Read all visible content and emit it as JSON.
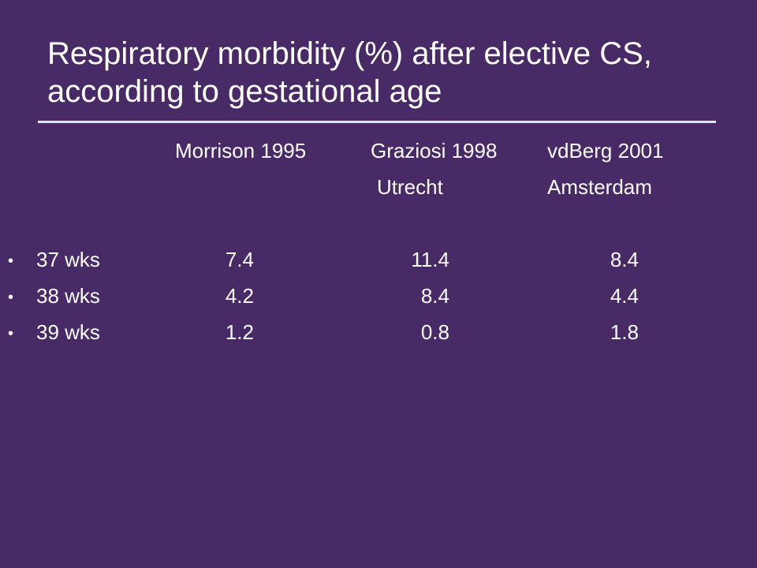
{
  "slide": {
    "title": "Respiratory morbidity (%) after elective CS, according to gestational age"
  },
  "table": {
    "columns": [
      {
        "name": "Morrison 1995",
        "sub": ""
      },
      {
        "name": "Graziosi 1998",
        "sub": "Utrecht"
      },
      {
        "name": "vdBerg 2001",
        "sub": "Amsterdam"
      }
    ],
    "rows": [
      {
        "bullet": "•",
        "label": "37 wks",
        "values": [
          "7.4",
          "11.4",
          "8.4"
        ]
      },
      {
        "bullet": "•",
        "label": "38 wks",
        "values": [
          "4.2",
          "8.4",
          "4.4"
        ]
      },
      {
        "bullet": "•",
        "label": "39 wks",
        "values": [
          "1.2",
          "0.8",
          "1.8"
        ]
      }
    ]
  }
}
